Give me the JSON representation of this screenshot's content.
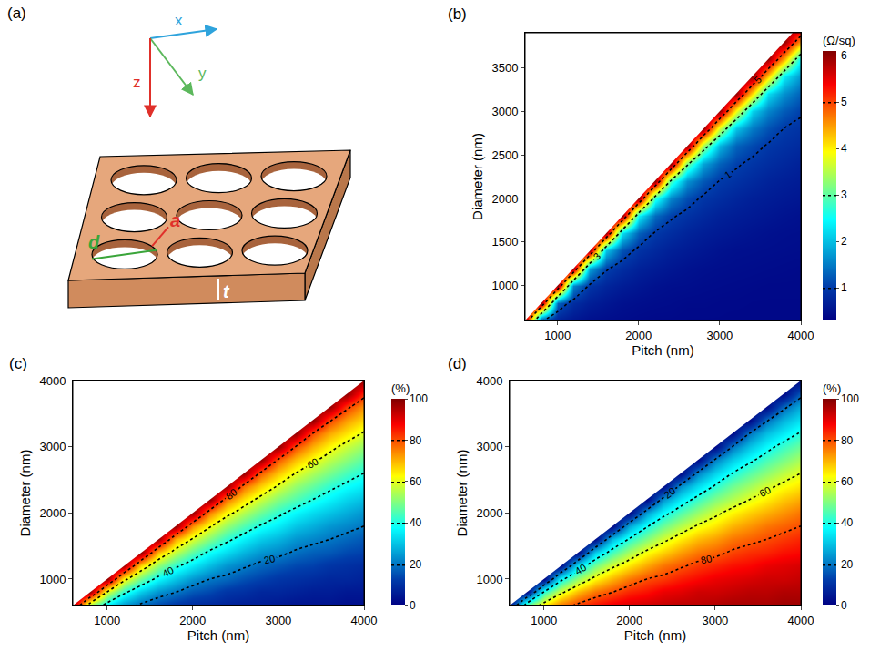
{
  "diagram": {
    "label": "(a)",
    "axes": [
      "x",
      "y",
      "z"
    ],
    "dimensions": [
      "a",
      "d",
      "t"
    ]
  },
  "chart_data": [
    {
      "type": "contour",
      "panel": "(b)",
      "xlabel": "Pitch (nm)",
      "ylabel": "Diameter (nm)",
      "xlim": [
        600,
        4000
      ],
      "ylim": [
        600,
        3900
      ],
      "xticks": [
        1000,
        2000,
        3000,
        4000
      ],
      "yticks": [
        1000,
        1500,
        2000,
        2500,
        3000,
        3500
      ],
      "grid": false,
      "colorbar_title": "(Ω/sq)",
      "colorbar_range": [
        0.3,
        6.1
      ],
      "colorbar_ticks": [
        1,
        2,
        3,
        4,
        5,
        6
      ],
      "contour_levels": [
        1,
        3,
        5
      ],
      "x": [
        600,
        800,
        1000,
        1200,
        1400,
        1600,
        1800,
        2000,
        2200,
        2400,
        2600,
        2800,
        3000,
        3200,
        3400,
        3600,
        3800,
        4000
      ],
      "y": [
        600,
        800,
        1000,
        1200,
        1400,
        1600,
        1800,
        2000,
        2200,
        2400,
        2600,
        2800,
        3000,
        3200,
        3400,
        3600,
        3800,
        4000
      ],
      "z": [
        [
          6,
          1.05,
          0.7,
          0.57,
          0.49,
          0.46,
          0.44,
          0.42,
          0.41,
          0.41,
          0.4,
          0.4,
          0.4,
          0.39,
          0.39,
          0.39,
          0.39,
          0.39
        ],
        [
          null,
          6,
          1.3,
          0.84,
          0.66,
          0.57,
          0.5,
          0.47,
          0.45,
          0.44,
          0.42,
          0.42,
          0.41,
          0.41,
          0.4,
          0.4,
          0.4,
          0.4
        ],
        [
          null,
          null,
          6,
          1.57,
          0.94,
          0.75,
          0.64,
          0.57,
          0.51,
          0.48,
          0.47,
          0.45,
          0.44,
          0.43,
          0.42,
          0.41,
          0.41,
          0.41
        ],
        [
          null,
          null,
          null,
          6,
          1.8,
          1.05,
          0.84,
          0.7,
          0.63,
          0.57,
          0.52,
          0.49,
          0.47,
          0.46,
          0.45,
          0.44,
          0.43,
          0.42
        ],
        [
          null,
          null,
          null,
          null,
          6,
          2.05,
          1.19,
          0.91,
          0.78,
          0.68,
          0.62,
          0.57,
          0.52,
          0.49,
          0.48,
          0.47,
          0.46,
          0.45
        ],
        [
          null,
          null,
          null,
          null,
          null,
          6,
          2.24,
          1.3,
          0.97,
          0.84,
          0.73,
          0.66,
          0.61,
          0.57,
          0.53,
          0.5,
          0.48,
          0.47
        ],
        [
          null,
          null,
          null,
          null,
          null,
          null,
          6,
          2.4,
          1.37,
          1.05,
          0.9,
          0.79,
          0.7,
          0.65,
          0.61,
          0.57,
          0.53,
          0.5
        ],
        [
          null,
          null,
          null,
          null,
          null,
          null,
          null,
          6,
          2.67,
          1.57,
          1.15,
          0.94,
          0.84,
          0.75,
          0.68,
          0.64,
          0.6,
          0.57
        ],
        [
          null,
          null,
          null,
          null,
          null,
          null,
          null,
          null,
          6,
          2.9,
          1.67,
          1.23,
          0.99,
          0.89,
          0.8,
          0.72,
          0.67,
          0.63
        ],
        [
          null,
          null,
          null,
          null,
          null,
          null,
          null,
          null,
          null,
          6,
          3.15,
          1.8,
          1.3,
          1.05,
          0.93,
          0.84,
          0.77,
          0.7
        ],
        [
          null,
          null,
          null,
          null,
          null,
          null,
          null,
          null,
          null,
          null,
          6,
          3.43,
          1.93,
          1.32,
          1.12,
          0.96,
          0.88,
          0.81
        ],
        [
          null,
          null,
          null,
          null,
          null,
          null,
          null,
          null,
          null,
          null,
          null,
          6,
          3.67,
          2.05,
          1.49,
          1.19,
          0.99,
          0.91
        ],
        [
          null,
          null,
          null,
          null,
          null,
          null,
          null,
          null,
          null,
          null,
          null,
          null,
          6,
          3.88,
          2.15,
          1.57,
          1.25,
          1.05
        ],
        [
          null,
          null,
          null,
          null,
          null,
          null,
          null,
          null,
          null,
          null,
          null,
          null,
          null,
          6,
          4.06,
          2.24,
          1.64,
          1.3
        ],
        [
          null,
          null,
          null,
          null,
          null,
          null,
          null,
          null,
          null,
          null,
          null,
          null,
          null,
          null,
          6,
          4.22,
          2.33,
          1.7
        ],
        [
          null,
          null,
          null,
          null,
          null,
          null,
          null,
          null,
          null,
          null,
          null,
          null,
          null,
          null,
          null,
          6,
          4.37,
          2.4
        ],
        [
          null,
          null,
          null,
          null,
          null,
          null,
          null,
          null,
          null,
          null,
          null,
          null,
          null,
          null,
          null,
          null,
          6,
          4.5
        ],
        [
          null,
          null,
          null,
          null,
          null,
          null,
          null,
          null,
          null,
          null,
          null,
          null,
          null,
          null,
          null,
          null,
          null,
          6
        ]
      ]
    },
    {
      "type": "contour",
      "panel": "(c)",
      "xlabel": "Pitch (nm)",
      "ylabel": "Diameter (nm)",
      "xlim": [
        600,
        4000
      ],
      "ylim": [
        600,
        4000
      ],
      "xticks": [
        1000,
        2000,
        3000,
        4000
      ],
      "yticks": [
        1000,
        2000,
        3000,
        4000
      ],
      "grid": false,
      "colorbar_title": "(%)",
      "colorbar_range": [
        0,
        100
      ],
      "colorbar_ticks": [
        0,
        20,
        40,
        60,
        80,
        100
      ],
      "contour_levels": [
        20,
        40,
        60,
        80
      ],
      "x": [
        600,
        800,
        1000,
        1200,
        1400,
        1600,
        1800,
        2000,
        2200,
        2400,
        2600,
        2800,
        3000,
        3200,
        3400,
        3600,
        3800,
        4000
      ],
      "y": [
        600,
        800,
        1000,
        1200,
        1400,
        1600,
        1800,
        2000,
        2200,
        2400,
        2600,
        2800,
        3000,
        3200,
        3400,
        3600,
        3800,
        4000
      ],
      "z": [
        [
          98,
          52,
          35,
          24,
          18,
          14,
          11,
          9,
          8,
          7,
          6,
          6,
          5,
          4,
          4,
          4,
          3,
          3
        ],
        [
          null,
          98,
          59,
          42,
          31,
          24,
          20,
          16,
          14,
          11,
          10,
          8,
          8,
          7,
          6,
          6,
          5,
          5
        ],
        [
          null,
          null,
          98,
          63,
          48,
          37,
          30,
          24,
          20,
          18,
          15,
          13,
          11,
          10,
          9,
          8,
          8,
          7
        ],
        [
          null,
          null,
          null,
          98,
          67,
          52,
          42,
          35,
          29,
          24,
          21,
          18,
          16,
          14,
          13,
          11,
          10,
          9
        ],
        [
          null,
          null,
          null,
          null,
          98,
          69,
          56,
          46,
          38,
          33,
          28,
          24,
          22,
          19,
          17,
          16,
          14,
          13
        ],
        [
          null,
          null,
          null,
          null,
          null,
          98,
          71,
          59,
          50,
          42,
          36,
          31,
          28,
          24,
          22,
          20,
          18,
          16
        ],
        [
          null,
          null,
          null,
          null,
          null,
          null,
          98,
          73,
          61,
          52,
          45,
          39,
          35,
          30,
          27,
          24,
          22,
          20
        ],
        [
          null,
          null,
          null,
          null,
          null,
          null,
          null,
          98,
          75,
          63,
          55,
          48,
          42,
          37,
          33,
          30,
          27,
          24
        ],
        [
          null,
          null,
          null,
          null,
          null,
          null,
          null,
          null,
          98,
          76,
          65,
          57,
          50,
          45,
          40,
          36,
          32,
          29
        ],
        [
          null,
          null,
          null,
          null,
          null,
          null,
          null,
          null,
          null,
          98,
          77,
          67,
          59,
          52,
          47,
          42,
          38,
          35
        ],
        [
          null,
          null,
          null,
          null,
          null,
          null,
          null,
          null,
          null,
          null,
          98,
          78,
          68,
          60,
          54,
          49,
          44,
          40
        ],
        [
          null,
          null,
          null,
          null,
          null,
          null,
          null,
          null,
          null,
          null,
          null,
          98,
          79,
          69,
          62,
          56,
          51,
          46
        ],
        [
          null,
          null,
          null,
          null,
          null,
          null,
          null,
          null,
          null,
          null,
          null,
          null,
          98,
          80,
          70,
          63,
          57,
          52
        ],
        [
          null,
          null,
          null,
          null,
          null,
          null,
          null,
          null,
          null,
          null,
          null,
          null,
          null,
          98,
          80,
          71,
          65,
          59
        ],
        [
          null,
          null,
          null,
          null,
          null,
          null,
          null,
          null,
          null,
          null,
          null,
          null,
          null,
          null,
          98,
          81,
          72,
          66
        ],
        [
          null,
          null,
          null,
          null,
          null,
          null,
          null,
          null,
          null,
          null,
          null,
          null,
          null,
          null,
          null,
          98,
          82,
          73
        ],
        [
          null,
          null,
          null,
          null,
          null,
          null,
          null,
          null,
          null,
          null,
          null,
          null,
          null,
          null,
          null,
          null,
          98,
          83
        ],
        [
          null,
          null,
          null,
          null,
          null,
          null,
          null,
          null,
          null,
          null,
          null,
          null,
          null,
          null,
          null,
          null,
          null,
          98
        ]
      ]
    },
    {
      "type": "contour",
      "panel": "(d)",
      "xlabel": "Pitch (nm)",
      "ylabel": "Diameter (nm)",
      "xlim": [
        600,
        4000
      ],
      "ylim": [
        600,
        4000
      ],
      "xticks": [
        1000,
        2000,
        3000,
        4000
      ],
      "yticks": [
        1000,
        2000,
        3000,
        4000
      ],
      "grid": false,
      "colorbar_title": "(%)",
      "colorbar_range": [
        0,
        100
      ],
      "colorbar_ticks": [
        0,
        20,
        40,
        60,
        80,
        100
      ],
      "contour_levels": [
        20,
        40,
        60,
        80
      ],
      "x": [
        600,
        800,
        1000,
        1200,
        1400,
        1600,
        1800,
        2000,
        2200,
        2400,
        2600,
        2800,
        3000,
        3200,
        3400,
        3600,
        3800,
        4000
      ],
      "y": [
        600,
        800,
        1000,
        1200,
        1400,
        1600,
        1800,
        2000,
        2200,
        2400,
        2600,
        2800,
        3000,
        3200,
        3400,
        3600,
        3800,
        4000
      ],
      "z": [
        [
          2,
          48,
          65,
          76,
          82,
          86,
          89,
          91,
          92,
          93,
          94,
          94,
          95,
          96,
          96,
          96,
          97,
          97
        ],
        [
          null,
          2,
          41,
          58,
          69,
          76,
          80,
          84,
          86,
          89,
          90,
          92,
          92,
          93,
          94,
          94,
          95,
          95
        ],
        [
          null,
          null,
          2,
          37,
          52,
          63,
          70,
          76,
          80,
          82,
          85,
          87,
          89,
          90,
          91,
          92,
          92,
          93
        ],
        [
          null,
          null,
          null,
          2,
          33,
          48,
          58,
          65,
          71,
          76,
          79,
          82,
          84,
          86,
          87,
          89,
          90,
          91
        ],
        [
          null,
          null,
          null,
          null,
          2,
          31,
          44,
          54,
          62,
          67,
          72,
          76,
          78,
          81,
          83,
          84,
          86,
          87
        ],
        [
          null,
          null,
          null,
          null,
          null,
          2,
          29,
          41,
          50,
          58,
          64,
          69,
          72,
          76,
          78,
          80,
          82,
          84
        ],
        [
          null,
          null,
          null,
          null,
          null,
          null,
          2,
          27,
          39,
          48,
          55,
          61,
          65,
          70,
          73,
          76,
          78,
          80
        ],
        [
          null,
          null,
          null,
          null,
          null,
          null,
          null,
          2,
          25,
          37,
          45,
          52,
          58,
          63,
          67,
          70,
          73,
          76
        ],
        [
          null,
          null,
          null,
          null,
          null,
          null,
          null,
          null,
          2,
          24,
          35,
          43,
          50,
          55,
          60,
          64,
          68,
          71
        ],
        [
          null,
          null,
          null,
          null,
          null,
          null,
          null,
          null,
          null,
          2,
          23,
          33,
          41,
          48,
          53,
          58,
          62,
          65
        ],
        [
          null,
          null,
          null,
          null,
          null,
          null,
          null,
          null,
          null,
          null,
          2,
          22,
          32,
          40,
          46,
          51,
          56,
          60
        ],
        [
          null,
          null,
          null,
          null,
          null,
          null,
          null,
          null,
          null,
          null,
          null,
          2,
          21,
          31,
          38,
          44,
          49,
          54
        ],
        [
          null,
          null,
          null,
          null,
          null,
          null,
          null,
          null,
          null,
          null,
          null,
          null,
          2,
          20,
          30,
          37,
          43,
          48
        ],
        [
          null,
          null,
          null,
          null,
          null,
          null,
          null,
          null,
          null,
          null,
          null,
          null,
          null,
          2,
          20,
          29,
          35,
          41
        ],
        [
          null,
          null,
          null,
          null,
          null,
          null,
          null,
          null,
          null,
          null,
          null,
          null,
          null,
          null,
          2,
          19,
          28,
          34
        ],
        [
          null,
          null,
          null,
          null,
          null,
          null,
          null,
          null,
          null,
          null,
          null,
          null,
          null,
          null,
          null,
          2,
          18,
          27
        ],
        [
          null,
          null,
          null,
          null,
          null,
          null,
          null,
          null,
          null,
          null,
          null,
          null,
          null,
          null,
          null,
          null,
          2,
          17
        ],
        [
          null,
          null,
          null,
          null,
          null,
          null,
          null,
          null,
          null,
          null,
          null,
          null,
          null,
          null,
          null,
          null,
          null,
          2
        ]
      ]
    }
  ]
}
